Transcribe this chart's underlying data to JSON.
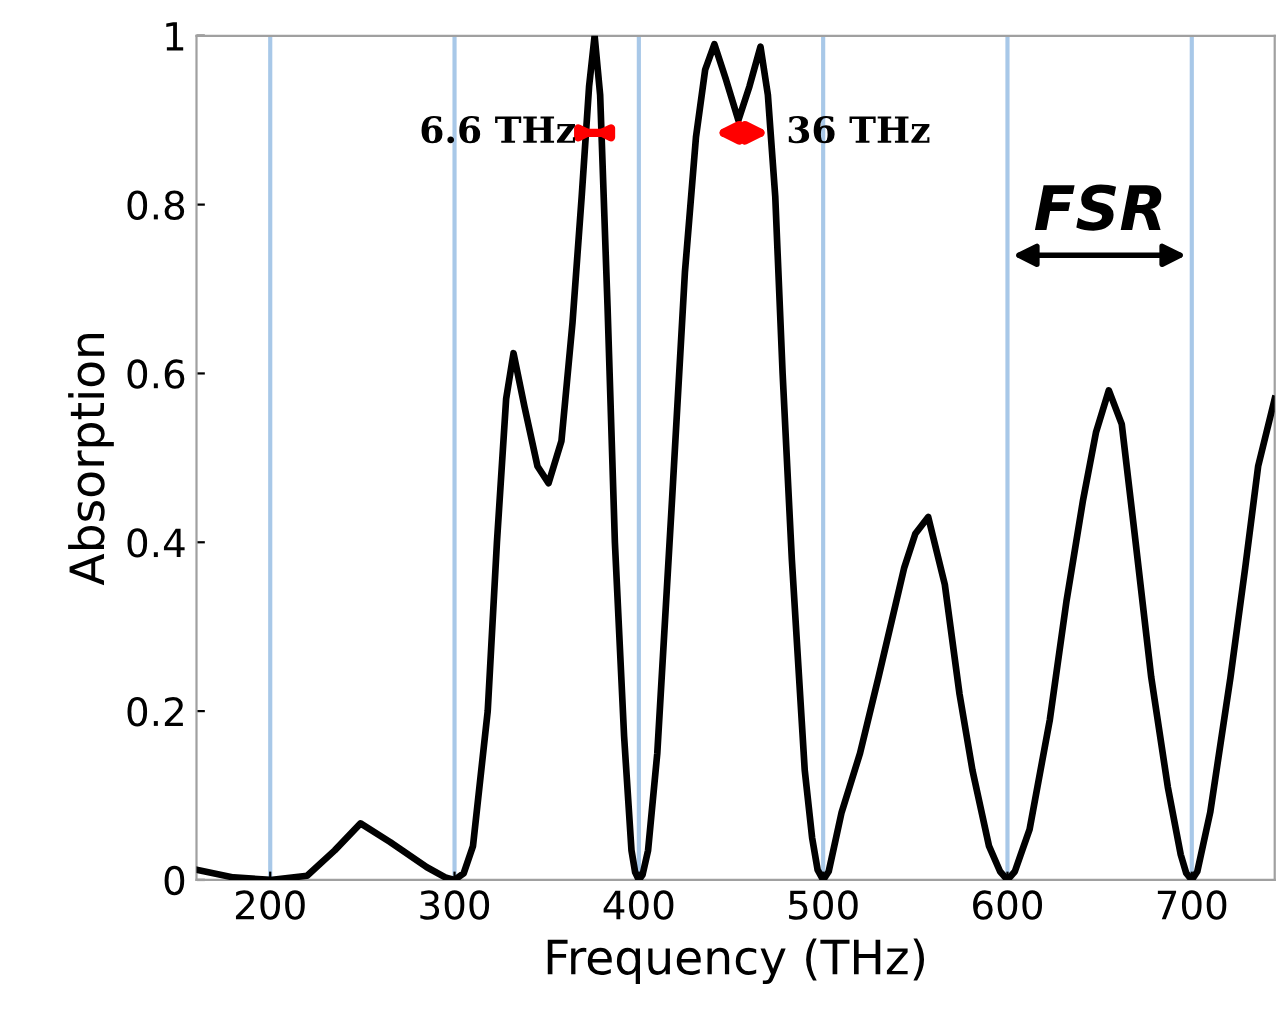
{
  "chart_data": {
    "type": "line",
    "xlabel": "Frequency (THz)",
    "ylabel": "Absorption",
    "xlim": [
      160,
      745
    ],
    "xticks": [
      200,
      300,
      400,
      500,
      600,
      700
    ],
    "ylim": [
      0,
      1
    ],
    "yticks": [
      0,
      0.2,
      0.4,
      0.6,
      0.8,
      1
    ],
    "grid": "x",
    "legend": false,
    "marker": "none",
    "line_style": "solid",
    "series": [
      {
        "color": "#000000",
        "x": [
          160,
          180,
          200,
          220,
          235,
          249,
          265,
          285,
          295,
          300,
          305,
          310,
          318,
          323,
          328,
          332,
          338,
          345,
          351,
          358,
          364,
          369,
          373,
          376,
          379,
          383,
          387,
          392,
          396,
          398,
          400,
          402,
          405,
          410,
          418,
          425,
          431,
          436,
          441,
          447,
          454,
          460,
          466,
          470,
          474,
          478,
          483,
          490,
          494,
          497,
          500,
          503,
          506,
          510,
          520,
          530,
          544,
          550,
          557,
          566,
          574,
          581,
          590,
          596,
          600,
          604,
          612,
          623,
          632,
          641,
          648,
          655,
          662,
          669,
          678,
          687,
          694,
          697,
          700,
          703,
          710,
          721,
          729,
          736,
          745
        ],
        "values": [
          0.012,
          0.003,
          0.0,
          0.005,
          0.035,
          0.067,
          0.045,
          0.015,
          0.003,
          0.0,
          0.008,
          0.04,
          0.2,
          0.4,
          0.57,
          0.624,
          0.56,
          0.49,
          0.47,
          0.52,
          0.66,
          0.81,
          0.94,
          1.0,
          0.93,
          0.68,
          0.4,
          0.17,
          0.035,
          0.009,
          0.0,
          0.006,
          0.035,
          0.15,
          0.45,
          0.72,
          0.88,
          0.96,
          0.99,
          0.95,
          0.9,
          0.94,
          0.987,
          0.93,
          0.81,
          0.6,
          0.38,
          0.13,
          0.05,
          0.012,
          0.0,
          0.01,
          0.04,
          0.08,
          0.15,
          0.24,
          0.37,
          0.41,
          0.43,
          0.35,
          0.22,
          0.13,
          0.04,
          0.01,
          0.0,
          0.01,
          0.06,
          0.19,
          0.33,
          0.45,
          0.53,
          0.58,
          0.54,
          0.41,
          0.24,
          0.11,
          0.03,
          0.008,
          0.0,
          0.01,
          0.08,
          0.24,
          0.37,
          0.49,
          0.57
        ]
      }
    ],
    "annotations": [
      {
        "text": "6.6 THz",
        "x": 376,
        "y": 0.885
      },
      {
        "text": "36 THz",
        "x": 456,
        "y": 0.885
      },
      "FSR"
    ]
  }
}
